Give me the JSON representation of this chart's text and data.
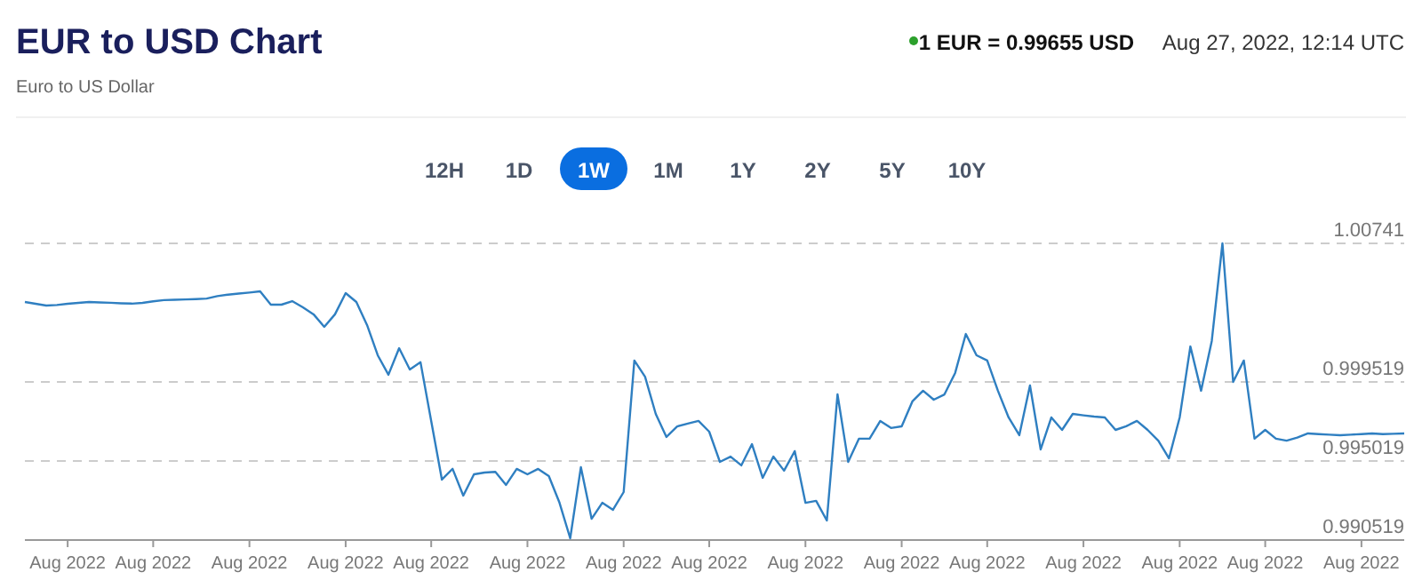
{
  "chart_data": {
    "type": "line",
    "title": "EUR to USD Chart",
    "subtitle": "Euro to US Dollar",
    "annotations": [
      "1 EUR = 0.99655 USD",
      "Aug 27, 2022, 12:14 UTC",
      "12H",
      "1D",
      "1W",
      "1M",
      "1Y",
      "2Y",
      "5Y",
      "10Y"
    ],
    "categories": [
      null,
      null,
      null,
      null,
      "Aug 2022",
      null,
      null,
      null,
      null,
      null,
      null,
      null,
      "Aug 2022",
      null,
      null,
      null,
      null,
      null,
      null,
      null,
      null,
      "Aug 2022",
      null,
      null,
      null,
      null,
      null,
      null,
      null,
      null,
      "Aug 2022",
      null,
      null,
      null,
      null,
      null,
      null,
      null,
      "Aug 2022",
      null,
      null,
      null,
      null,
      null,
      null,
      null,
      null,
      "Aug 2022",
      null,
      null,
      null,
      null,
      null,
      null,
      null,
      null,
      "Aug 2022",
      null,
      null,
      null,
      null,
      null,
      null,
      null,
      "Aug 2022",
      null,
      null,
      null,
      null,
      null,
      null,
      null,
      null,
      "Aug 2022",
      null,
      null,
      null,
      null,
      null,
      null,
      null,
      null,
      "Aug 2022",
      null,
      null,
      null,
      null,
      null,
      null,
      null,
      "Aug 2022",
      null,
      null,
      null,
      null,
      null,
      null,
      null,
      null,
      "Aug 2022",
      null,
      null,
      null,
      null,
      null,
      null,
      null,
      null,
      "Aug 2022",
      null,
      null,
      null,
      null,
      null,
      null,
      null,
      "Aug 2022",
      null,
      null,
      null,
      null,
      null,
      null,
      null,
      null,
      "Aug 2022",
      null,
      null,
      null,
      null
    ],
    "series": [
      {
        "color": "#2f7fc1",
        "values": [
          1.00407,
          1.00397,
          1.00387,
          1.0039,
          1.00397,
          1.00402,
          1.00407,
          1.00405,
          1.00403,
          1.004,
          1.00398,
          1.00402,
          1.00411,
          1.00418,
          1.0042,
          1.00422,
          1.00424,
          1.00427,
          1.00441,
          1.00449,
          1.00455,
          1.00461,
          1.00468,
          1.00392,
          1.00392,
          1.00412,
          1.00377,
          1.00337,
          1.00266,
          1.00337,
          1.00458,
          1.00407,
          1.00276,
          1.00104,
          0.99993,
          1.00144,
          1.00023,
          1.00064,
          0.9973,
          0.99396,
          0.99457,
          0.99305,
          0.99426,
          0.99436,
          0.9944,
          0.99366,
          0.99457,
          0.99426,
          0.99457,
          0.99416,
          0.99264,
          0.99062,
          0.99467,
          0.99173,
          0.99264,
          0.99224,
          0.99325,
          1.00074,
          0.99982,
          0.9977,
          0.99639,
          0.99699,
          0.99715,
          0.9973,
          0.99669,
          0.99497,
          0.99527,
          0.99477,
          0.99598,
          0.99406,
          0.99527,
          0.99447,
          0.99558,
          0.99264,
          0.99275,
          0.99163,
          0.99881,
          0.99497,
          0.99629,
          0.99629,
          0.9973,
          0.9969,
          0.99699,
          0.99841,
          0.99902,
          0.99851,
          0.99881,
          1.00003,
          1.00225,
          1.00104,
          1.00074,
          0.99902,
          0.9975,
          0.99649,
          0.99932,
          0.99568,
          0.9975,
          0.99679,
          0.9977,
          0.99762,
          0.99755,
          0.9975,
          0.99679,
          0.997,
          0.9973,
          0.99679,
          0.99618,
          0.99517,
          0.9975,
          1.00154,
          0.99902,
          1.00185,
          1.00741,
          0.99952,
          1.00074,
          0.99629,
          0.99679,
          0.99629,
          0.99618,
          0.99635,
          0.99659,
          0.99655,
          0.99652,
          0.99649,
          0.99652,
          0.99655,
          0.99659,
          0.99655,
          0.99657,
          0.99659
        ]
      }
    ],
    "ylim": [
      0.990519,
      1.00741
    ],
    "yticks": [
      0.990519,
      0.995019,
      0.999519,
      1.00741
    ],
    "grid": "y",
    "marker": "none",
    "line_style": "solid"
  }
}
